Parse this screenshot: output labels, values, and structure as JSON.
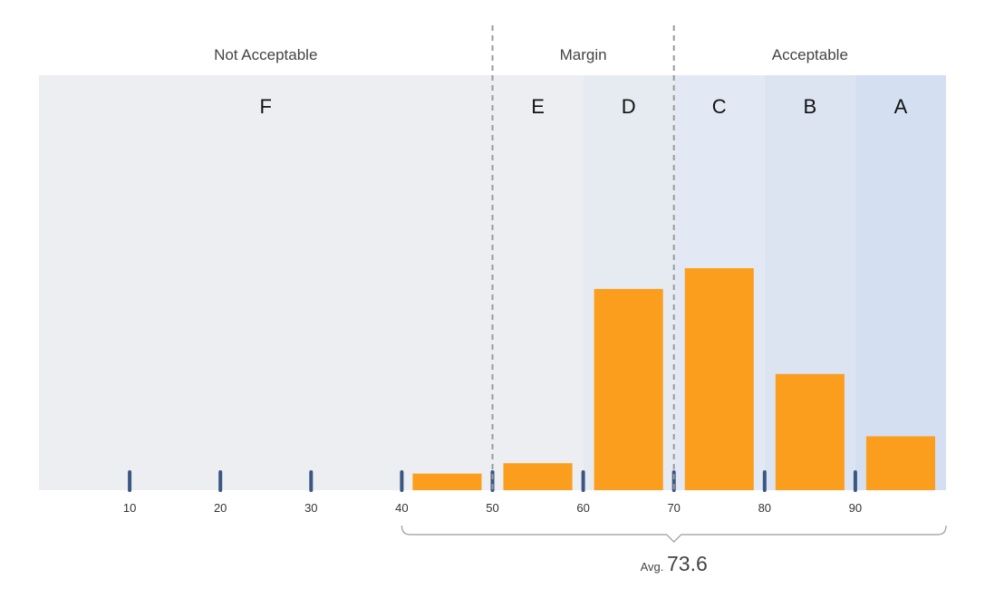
{
  "chart_data": {
    "type": "bar",
    "title": "",
    "xlabel": "",
    "ylabel": "",
    "xlim": [
      0,
      100
    ],
    "ylim": [
      0,
      100
    ],
    "bins": [
      {
        "range": [
          40,
          50
        ],
        "value": 4
      },
      {
        "range": [
          50,
          60
        ],
        "value": 6.5
      },
      {
        "range": [
          60,
          70
        ],
        "value": 48.5
      },
      {
        "range": [
          70,
          80
        ],
        "value": 53.5
      },
      {
        "range": [
          80,
          90
        ],
        "value": 28
      },
      {
        "range": [
          90,
          100
        ],
        "value": 13
      }
    ],
    "bar_color": "#FB9E1E",
    "x_ticks": [
      10,
      20,
      30,
      40,
      50,
      60,
      70,
      80,
      90
    ],
    "tick_mark_color": "#3A5683",
    "zones": [
      {
        "label": "Not Acceptable",
        "range": [
          0,
          50
        ]
      },
      {
        "label": "Margin",
        "range": [
          50,
          70
        ]
      },
      {
        "label": "Acceptable",
        "range": [
          70,
          100
        ]
      }
    ],
    "zone_dividers": [
      50,
      70
    ],
    "grades": [
      {
        "label": "F",
        "range": [
          0,
          50
        ],
        "color": "#ECEEF2"
      },
      {
        "label": "E",
        "range": [
          50,
          60
        ],
        "color": "#ECEEF2"
      },
      {
        "label": "D",
        "range": [
          60,
          70
        ],
        "color": "#E6EAF1"
      },
      {
        "label": "C",
        "range": [
          70,
          80
        ],
        "color": "#E3E9F4"
      },
      {
        "label": "B",
        "range": [
          80,
          90
        ],
        "color": "#DCE4F2"
      },
      {
        "label": "A",
        "range": [
          90,
          100
        ],
        "color": "#D4E0F2"
      }
    ],
    "average": {
      "prefix": "Avg.",
      "value": 73.6,
      "value_text": "73.6",
      "span": [
        40,
        100
      ],
      "pointer_at": 70
    }
  }
}
